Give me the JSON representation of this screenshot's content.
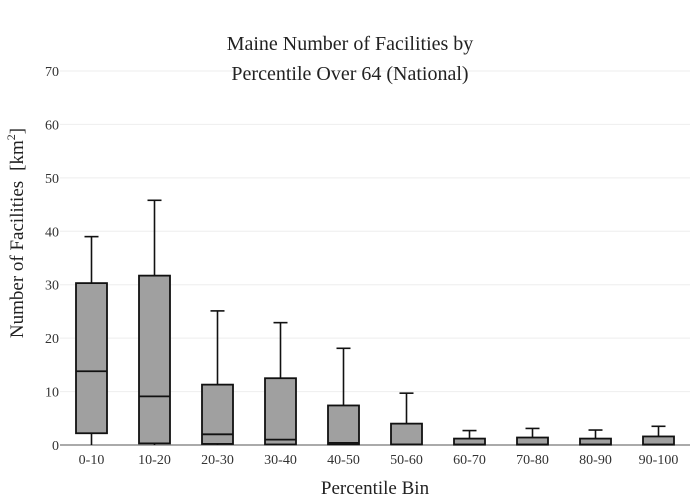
{
  "chart_data": {
    "type": "box",
    "title_lines": [
      "Maine Number of Facilities by",
      "Percentile Over 64 (National)"
    ],
    "xlabel": "Percentile Bin",
    "ylabel": "Number of Facilities",
    "ylabel_unit_prefix": "[km",
    "ylabel_unit_sup": "2",
    "ylabel_unit_suffix": "]",
    "ylim": [
      0,
      70
    ],
    "yticks": [
      "0",
      "10",
      "20",
      "30",
      "40",
      "50",
      "60",
      "70"
    ],
    "categories": [
      "0-10",
      "10-20",
      "20-30",
      "30-40",
      "40-50",
      "50-60",
      "60-70",
      "70-80",
      "80-90",
      "90-100"
    ],
    "boxes": [
      {
        "min": 0,
        "q1": 2.2,
        "median": 13.8,
        "q3": 30.3,
        "max": 39
      },
      {
        "min": 0,
        "q1": 0.3,
        "median": 9.1,
        "q3": 31.7,
        "max": 45.8
      },
      {
        "min": 0,
        "q1": 0.2,
        "median": 2.0,
        "q3": 11.3,
        "max": 25.1
      },
      {
        "min": 0,
        "q1": 0.1,
        "median": 1.0,
        "q3": 12.5,
        "max": 22.9
      },
      {
        "min": 0,
        "q1": 0.1,
        "median": 0.4,
        "q3": 7.4,
        "max": 18.1
      },
      {
        "min": 0,
        "q1": 0.1,
        "median": 0.1,
        "q3": 4.0,
        "max": 9.7
      },
      {
        "min": 0,
        "q1": 0.05,
        "median": 0.1,
        "q3": 1.2,
        "max": 2.7
      },
      {
        "min": 0,
        "q1": 0.05,
        "median": 0.1,
        "q3": 1.4,
        "max": 3.1
      },
      {
        "min": 0,
        "q1": 0.05,
        "median": 0.1,
        "q3": 1.2,
        "max": 2.8
      },
      {
        "min": 0,
        "q1": 0.05,
        "median": 0.1,
        "q3": 1.6,
        "max": 3.5
      }
    ],
    "box_color": "#a0a0a0",
    "line_color": "#111111",
    "grid": true,
    "legend": false
  }
}
